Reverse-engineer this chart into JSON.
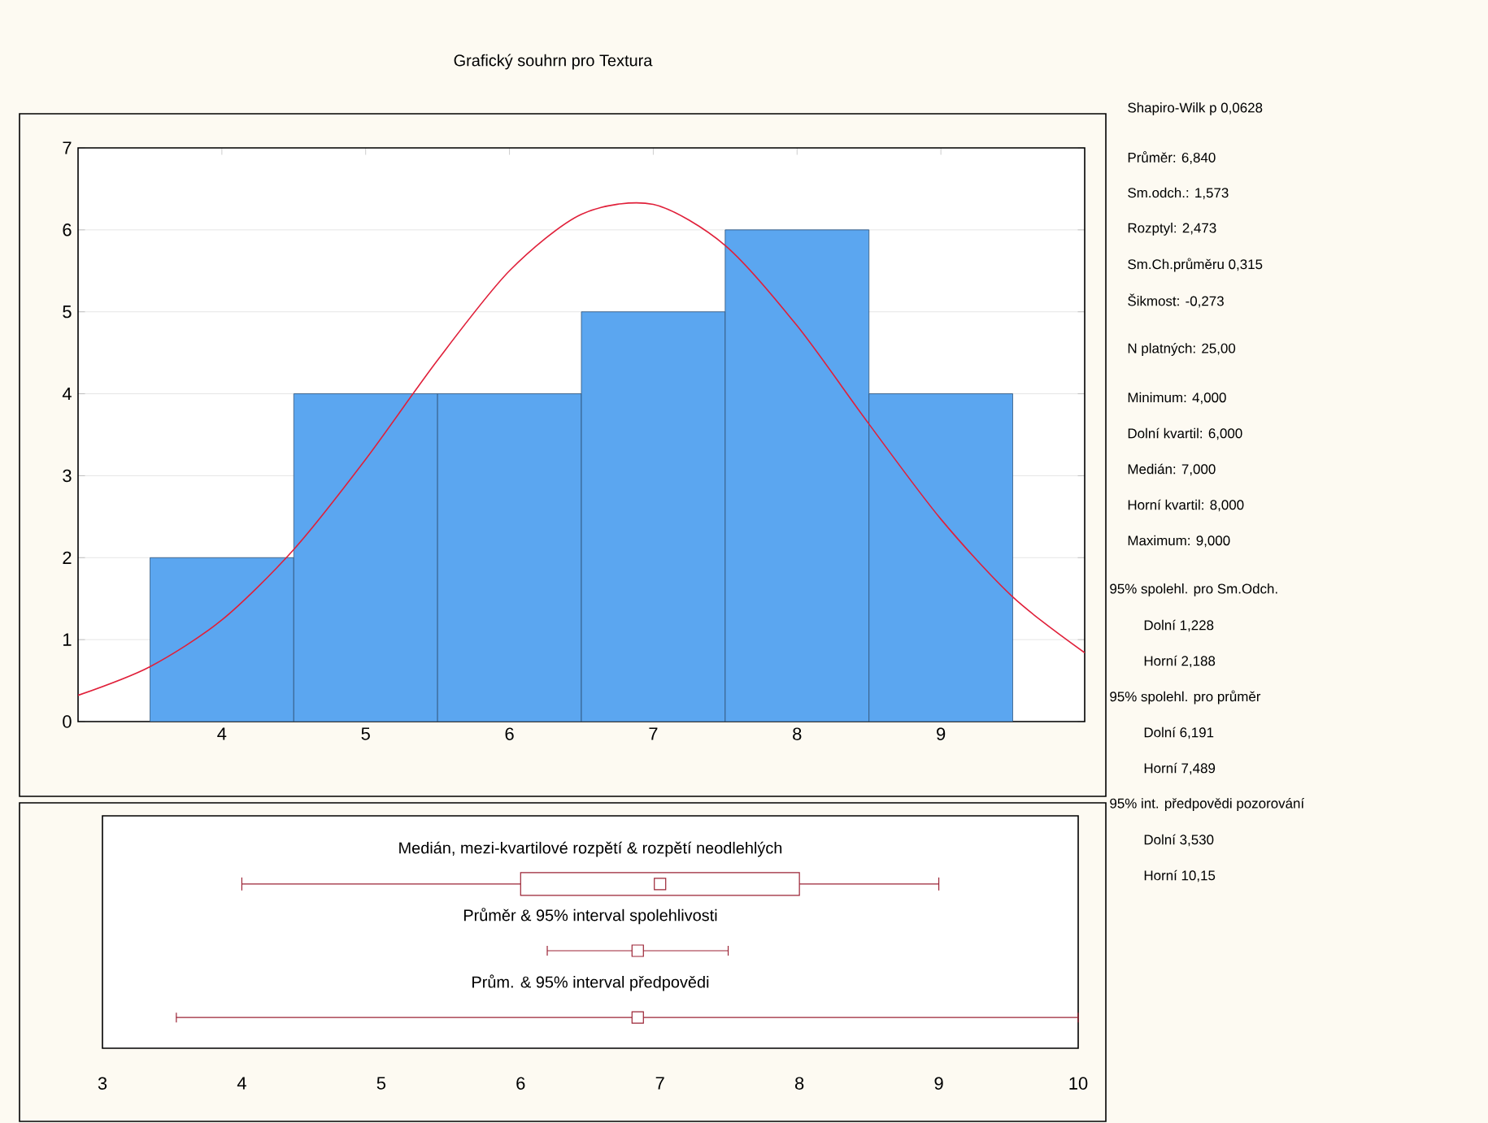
{
  "chart_data": [
    {
      "type": "histogram",
      "title": "Grafický souhrn pro Textura",
      "bins": [
        3.5,
        4.5,
        5.5,
        6.5,
        7.5,
        8.5,
        9.5
      ],
      "series": [
        {
          "type": "histogram",
          "color": "#5ba6f0",
          "values": [
            2,
            4,
            4,
            5,
            6,
            4
          ]
        },
        {
          "type": "line",
          "color": "#e0203a",
          "x": [
            3.0,
            3.5,
            4.0,
            4.5,
            5.0,
            5.5,
            6.0,
            6.5,
            7.0,
            7.5,
            8.0,
            8.5,
            9.0,
            9.5,
            10.0
          ],
          "values": [
            0.32,
            0.67,
            1.24,
            2.1,
            3.2,
            4.41,
            5.5,
            6.19,
            6.31,
            5.81,
            4.83,
            3.63,
            2.47,
            1.52,
            0.84
          ]
        }
      ],
      "xlim": [
        3,
        10
      ],
      "xticks": [
        4,
        5,
        6,
        7,
        8,
        9
      ],
      "ylim": [
        0,
        7
      ],
      "yticks": [
        0,
        1,
        2,
        3,
        4,
        5,
        6,
        7
      ],
      "grid": "y"
    },
    {
      "type": "box",
      "orientation": "horizontal",
      "color": "#9b2335",
      "marker": "square",
      "categories": [
        "Medián, mezi-kvartilové rozpětí & rozpětí neodlehlých",
        "Průměr & 95% interval spolehlivosti",
        "Prům. & 95% interval předpovědi"
      ],
      "series": [
        {
          "type": "box",
          "boxes": [
            {
              "low": 4,
              "q1": 6,
              "median": 7,
              "q3": 8,
              "high": 9
            },
            null,
            null
          ]
        },
        {
          "type": "scatter",
          "values": [
            null,
            6.84,
            6.84
          ],
          "errors": [
            null,
            [
              6.191,
              7.489
            ],
            [
              3.53,
              10
            ]
          ]
        }
      ],
      "xlim": [
        3,
        10
      ],
      "xticks": [
        3,
        4,
        5,
        6,
        7,
        8,
        9,
        10
      ]
    },
    {
      "type": "other",
      "annotations": [
        "Shapiro-Wilk p 0,0628",
        "Průměr: 6,840",
        "Sm.odch.: 1,573",
        "Rozptyl: 2,473",
        "Sm.Ch.průměru 0,315",
        "Šikmost: -0,273",
        "N platných: 25,00",
        "Minimum: 4,000",
        "Dolní kvartil: 6,000",
        "Medián: 7,000",
        "Horní kvartil: 8,000",
        "Maximum: 9,000",
        "95% spolehl. pro Sm.Odch.",
        "Dolní 1,228",
        "Horní 2,188",
        "95% spolehl. pro průměr",
        "Dolní 6,191",
        "Horní 7,489",
        "95% int. předpovědi pozorování",
        "Dolní 3,530",
        "Horní 10,15"
      ]
    }
  ]
}
